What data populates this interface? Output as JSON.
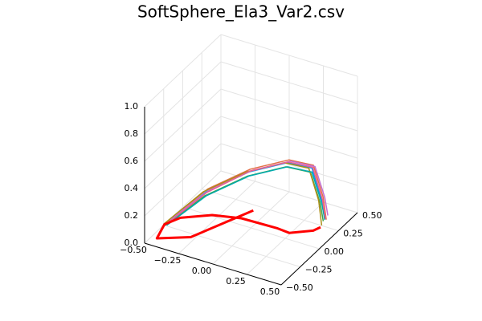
{
  "chart_data": {
    "type": "line3d",
    "title": "SoftSphere_Ela3_Var2.csv",
    "xlim": [
      -0.5,
      0.5
    ],
    "xticks": [
      {
        "value": -0.5,
        "label": "−0.50"
      },
      {
        "value": -0.25,
        "label": "−0.25"
      },
      {
        "value": 0,
        "label": "0.00"
      },
      {
        "value": 0.25,
        "label": "0.25"
      },
      {
        "value": 0.5,
        "label": "0.50"
      }
    ],
    "ylim": [
      -0.5,
      0.5
    ],
    "yticks": [
      {
        "value": -0.5,
        "label": "−0.50"
      },
      {
        "value": -0.25,
        "label": "−0.25"
      },
      {
        "value": 0,
        "label": "0.00"
      },
      {
        "value": 0.25,
        "label": "0.25"
      },
      {
        "value": 0.5,
        "label": "0.50"
      }
    ],
    "zlim": [
      0,
      1
    ],
    "zticks": [
      {
        "value": 0,
        "label": "0.0"
      },
      0.2,
      0.4,
      0.6,
      0.8,
      {
        "value": 1,
        "label": "1.0"
      }
    ],
    "grid": true,
    "series": [
      {
        "color": "#009afa",
        "x": [
          -0.45,
          -0.3,
          -0.1,
          0.1,
          0.25,
          0.35,
          0.4
        ],
        "y": [
          -0.3,
          -0.05,
          0.15,
          0.3,
          0.35,
          0.3,
          0.25
        ],
        "z": [
          0.05,
          0.2,
          0.3,
          0.35,
          0.33,
          0.15,
          0.05
        ]
      },
      {
        "color": "#e36f47",
        "x": [
          -0.45,
          -0.3,
          -0.1,
          0.1,
          0.25,
          0.35,
          0.4
        ],
        "y": [
          -0.28,
          -0.03,
          0.17,
          0.32,
          0.37,
          0.32,
          0.27
        ],
        "z": [
          0.06,
          0.21,
          0.31,
          0.36,
          0.34,
          0.16,
          0.04
        ]
      },
      {
        "color": "#3ea44e",
        "x": [
          -0.45,
          -0.3,
          -0.1,
          0.1,
          0.25,
          0.35,
          0.4
        ],
        "y": [
          -0.32,
          -0.07,
          0.13,
          0.28,
          0.33,
          0.28,
          0.23
        ],
        "z": [
          0.05,
          0.18,
          0.28,
          0.33,
          0.31,
          0.14,
          0.05
        ]
      },
      {
        "color": "#c270d2",
        "x": [
          -0.45,
          -0.3,
          -0.1,
          0.1,
          0.25,
          0.35,
          0.4
        ],
        "y": [
          -0.26,
          -0.01,
          0.19,
          0.34,
          0.39,
          0.34,
          0.29
        ],
        "z": [
          0.06,
          0.19,
          0.29,
          0.34,
          0.32,
          0.15,
          0.06
        ]
      },
      {
        "color": "#ac8e18",
        "x": [
          -0.45,
          -0.3,
          -0.1,
          0.1,
          0.25,
          0.35,
          0.4
        ],
        "y": [
          -0.34,
          -0.09,
          0.11,
          0.26,
          0.31,
          0.26,
          0.21
        ],
        "z": [
          0.07,
          0.22,
          0.32,
          0.37,
          0.35,
          0.17,
          0.03
        ]
      },
      {
        "color": "#00aaae",
        "x": [
          -0.45,
          -0.3,
          -0.1,
          0.1,
          0.25,
          0.35,
          0.4
        ],
        "y": [
          -0.3,
          -0.05,
          0.15,
          0.3,
          0.35,
          0.3,
          0.25
        ],
        "z": [
          0.04,
          0.17,
          0.27,
          0.32,
          0.3,
          0.13,
          0.05
        ]
      },
      {
        "color": "#ed5e93",
        "x": [
          -0.45,
          -0.3,
          -0.1,
          0.1,
          0.25,
          0.35,
          0.4
        ],
        "y": [
          -0.29,
          -0.04,
          0.16,
          0.31,
          0.36,
          0.31,
          0.26
        ],
        "z": [
          0.05,
          0.19,
          0.3,
          0.35,
          0.33,
          0.15,
          0.05
        ]
      },
      {
        "color": "#ff0000",
        "x": [
          -0.09,
          -0.28,
          -0.46,
          -0.5,
          -0.45,
          -0.29,
          -0.11,
          0.15,
          0.24,
          0.36,
          0.38
        ],
        "y": [
          0.19,
          -0.29,
          -0.41,
          -0.24,
          -0.12,
          0.01,
          0.07,
          0.08,
          0.07,
          0.17,
          0.23
        ],
        "z": [
          0,
          0,
          0,
          0,
          0,
          0,
          0,
          0,
          0,
          0,
          0
        ]
      }
    ]
  }
}
